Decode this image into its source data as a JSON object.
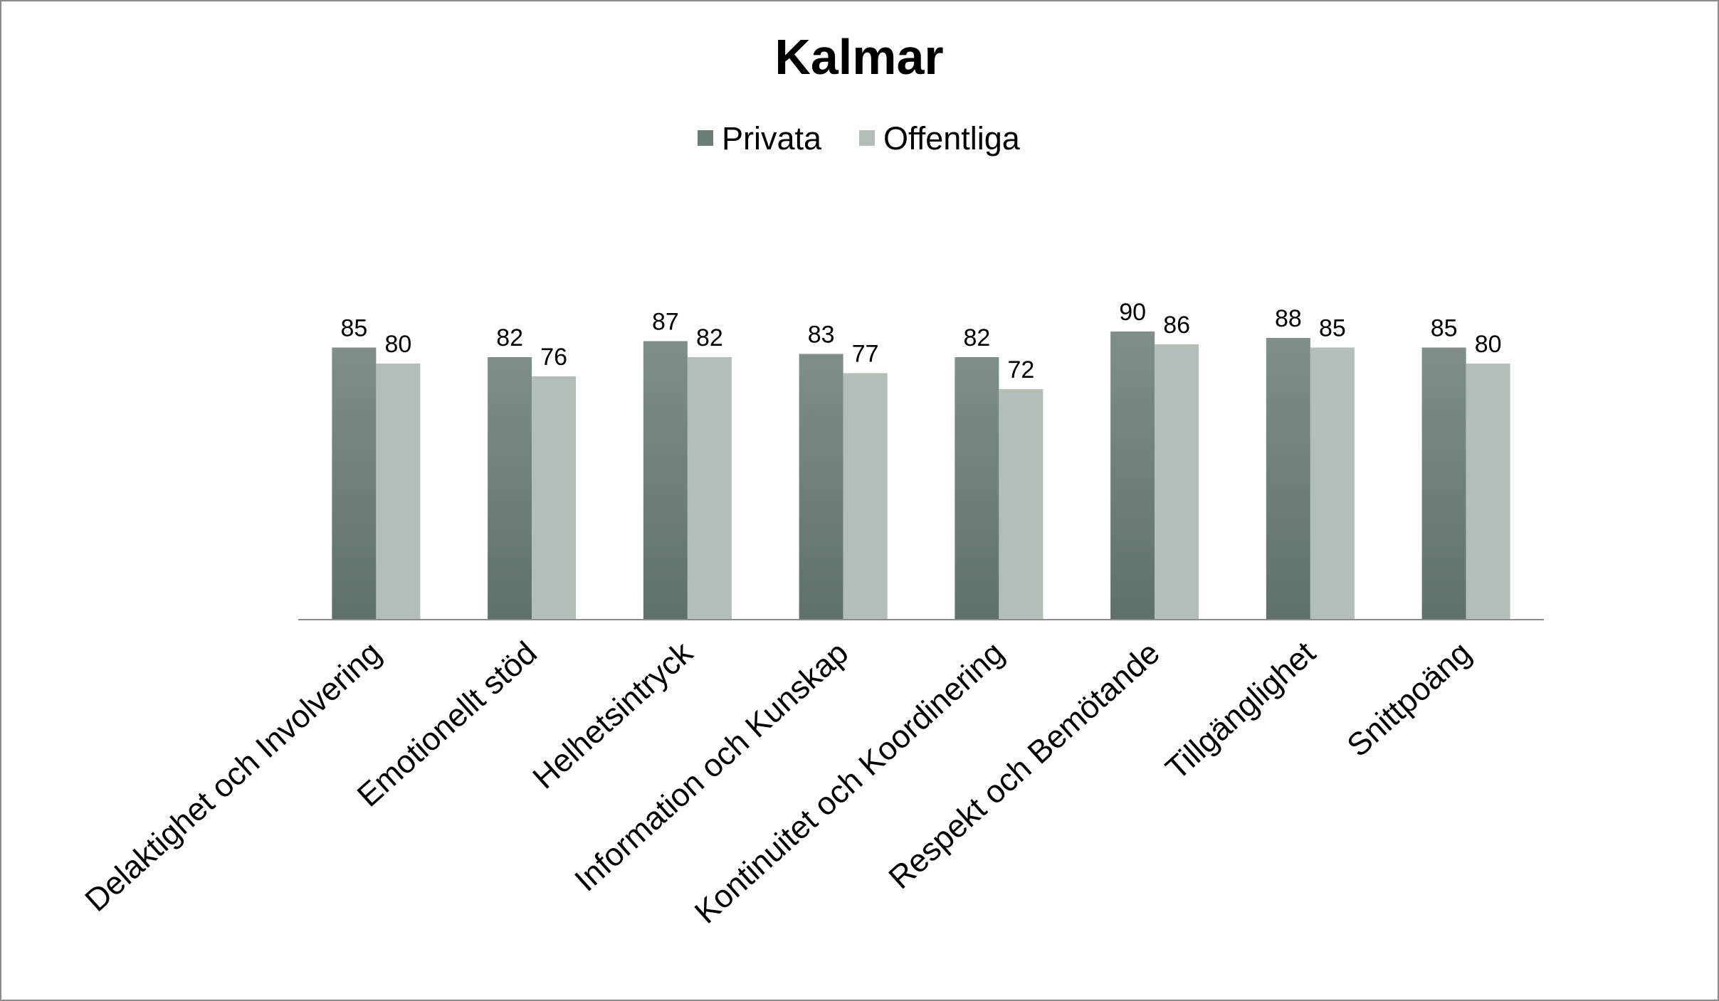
{
  "chart_data": {
    "type": "bar",
    "title": "Kalmar",
    "xlabel": "",
    "ylabel": "",
    "ylim": [
      0,
      100
    ],
    "grid": false,
    "legend_position": "top",
    "categories": [
      "Delaktighet och Involvering",
      "Emotionellt stöd",
      "Helhetsintryck",
      "Information och Kunskap",
      "Kontinuitet och Koordinering",
      "Respekt och Bemötande",
      "Tillgänglighet",
      "Snittpoäng"
    ],
    "series": [
      {
        "name": "Privata",
        "color": "#6b7f75",
        "values": [
          85,
          82,
          87,
          83,
          82,
          90,
          88,
          85
        ]
      },
      {
        "name": "Offentliga",
        "color": "#b2beb6",
        "values": [
          80,
          76,
          82,
          77,
          72,
          86,
          85,
          80
        ]
      }
    ]
  }
}
